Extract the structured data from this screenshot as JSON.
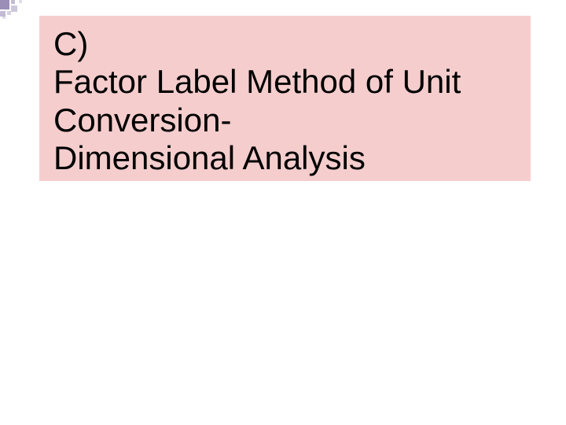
{
  "slide": {
    "title_line1": "C)",
    "title_line2": "Factor Label Method of Unit",
    "title_line3": "Conversion-",
    "title_line4": "Dimensional Analysis",
    "title_box_bg": "#f5cdcd",
    "background": "#ffffff",
    "decoration_color": "#9b8fb8",
    "title_fontsize": 42,
    "title_color": "#000000"
  }
}
